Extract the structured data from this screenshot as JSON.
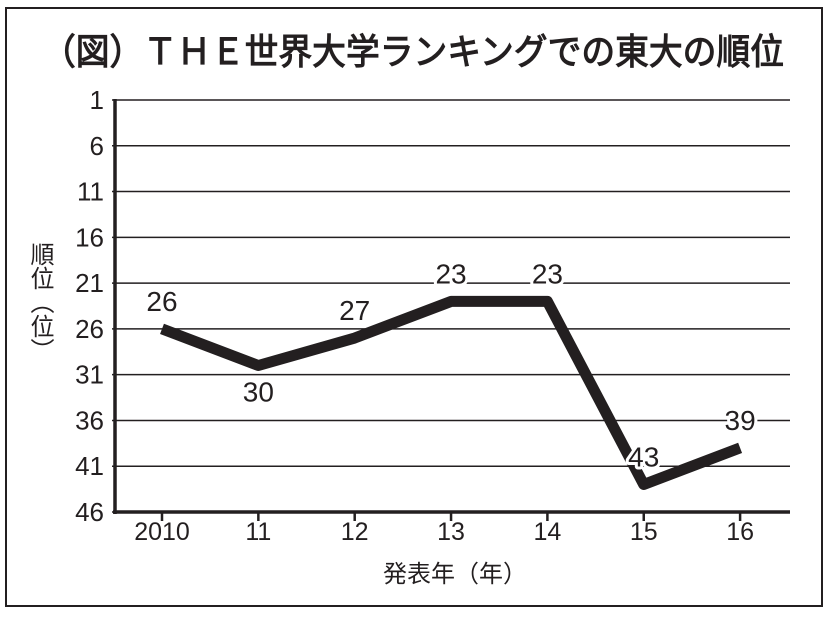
{
  "chart_data": {
    "type": "line",
    "title": "（図）ＴＨＥ世界大学ランキングでの東大の順位",
    "xlabel": "発表年（年）",
    "ylabel": "順位（位）",
    "categories": [
      "2010",
      "11",
      "12",
      "13",
      "14",
      "15",
      "16"
    ],
    "values": [
      26,
      30,
      27,
      23,
      23,
      43,
      39
    ],
    "yticks": [
      1,
      6,
      11,
      16,
      21,
      26,
      31,
      36,
      41,
      46
    ],
    "ylim": [
      1,
      46
    ],
    "y_inverted": true,
    "grid": true,
    "colors": {
      "line": "#231f20",
      "text": "#231f20",
      "grid": "#231f20",
      "frame": "#231f20",
      "label_halo": "#ffffff"
    }
  }
}
